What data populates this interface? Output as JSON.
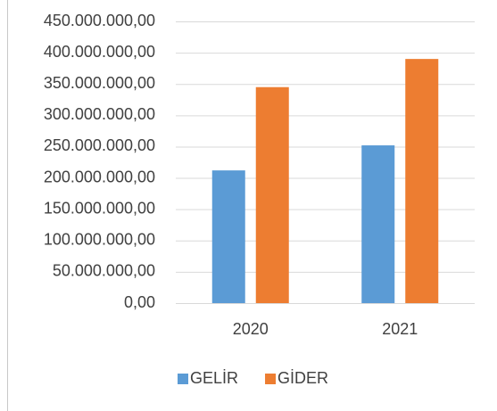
{
  "chart_data": {
    "type": "bar",
    "categories": [
      "2020",
      "2021"
    ],
    "series": [
      {
        "name": "GELİR",
        "color": "#5b9bd5",
        "values": [
          212000000,
          252000000
        ]
      },
      {
        "name": "GİDER",
        "color": "#ed7d31",
        "values": [
          345000000,
          390000000
        ]
      }
    ],
    "ylim": [
      0,
      450000000
    ],
    "yticks": [
      {
        "value": 0,
        "label": "0,00"
      },
      {
        "value": 50000000,
        "label": "50.000.000,00"
      },
      {
        "value": 100000000,
        "label": "100.000.000,00"
      },
      {
        "value": 150000000,
        "label": "150.000.000,00"
      },
      {
        "value": 200000000,
        "label": "200.000.000,00"
      },
      {
        "value": 250000000,
        "label": "250.000.000,00"
      },
      {
        "value": 300000000,
        "label": "300.000.000,00"
      },
      {
        "value": 350000000,
        "label": "350.000.000,00"
      },
      {
        "value": 400000000,
        "label": "400.000.000,00"
      },
      {
        "value": 450000000,
        "label": "450.000.000,00"
      }
    ],
    "grid": true,
    "legend": "bottom"
  }
}
